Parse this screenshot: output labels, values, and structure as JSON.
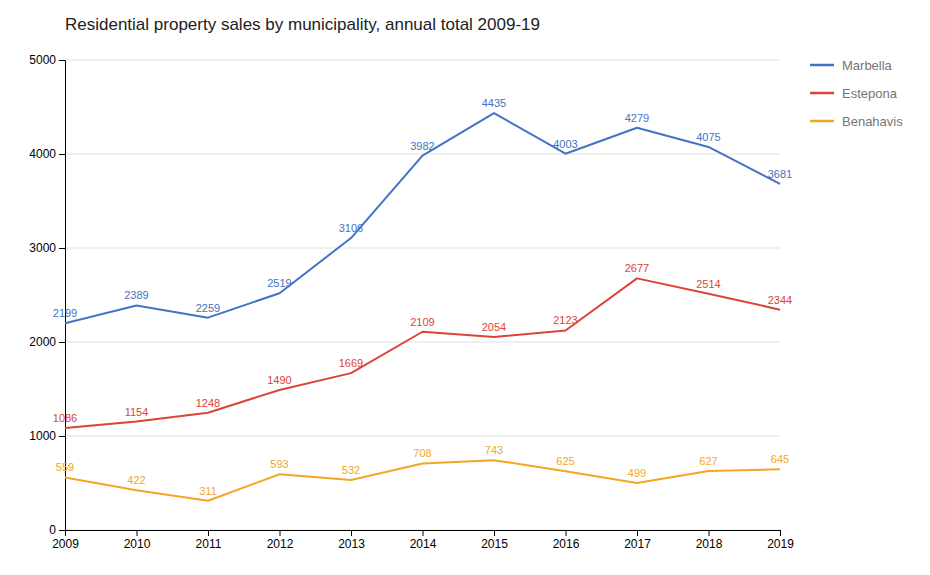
{
  "chart_data": {
    "type": "line",
    "title": "Residential property sales by municipality, annual total 2009-19",
    "x": [
      2009,
      2010,
      2011,
      2012,
      2013,
      2014,
      2015,
      2016,
      2017,
      2018,
      2019
    ],
    "series": [
      {
        "name": "Marbella",
        "color": "#4472c4",
        "values": [
          2199,
          2389,
          2259,
          2519,
          3106,
          3982,
          4435,
          4003,
          4279,
          4075,
          3681
        ]
      },
      {
        "name": "Estepona",
        "color": "#db4437",
        "values": [
          1086,
          1154,
          1248,
          1490,
          1669,
          2109,
          2054,
          2123,
          2677,
          2514,
          2344
        ]
      },
      {
        "name": "Benahavis",
        "color": "#f4a623",
        "values": [
          559,
          422,
          311,
          593,
          532,
          708,
          743,
          625,
          499,
          627,
          645
        ]
      }
    ],
    "xlim": [
      2009,
      2019
    ],
    "xticks": [
      2009,
      2010,
      2011,
      2012,
      2013,
      2014,
      2015,
      2016,
      2017,
      2018,
      2019
    ],
    "ylim": [
      0,
      5000
    ],
    "yticks": [
      0,
      1000,
      2000,
      3000,
      4000,
      5000
    ],
    "grid": true,
    "legend": "right",
    "data_labels": true
  }
}
